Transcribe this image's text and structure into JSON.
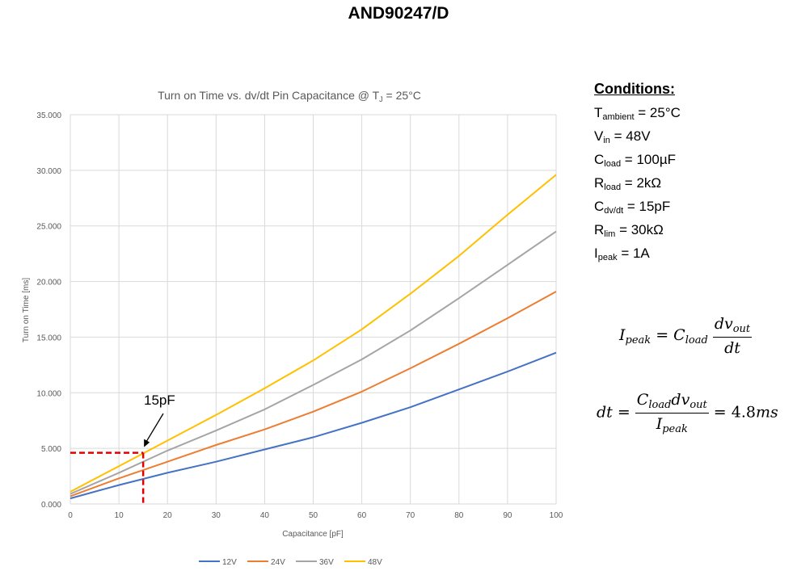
{
  "document_id": "AND90247/D",
  "annotation": {
    "label": "15pF",
    "x": 15,
    "y": 4.6
  },
  "conditions": {
    "title": "Conditions:",
    "items": [
      {
        "symbol": "T",
        "sub": "ambient",
        "rest": " = 25°C"
      },
      {
        "symbol": "V",
        "sub": "in",
        "rest": " = 48V"
      },
      {
        "symbol": "C",
        "sub": "load",
        "rest": "  = 100µF"
      },
      {
        "symbol": "R",
        "sub": "load",
        "rest": " = 2kΩ"
      },
      {
        "symbol": "C",
        "sub": "dv/dt",
        "rest": " = 15pF"
      },
      {
        "symbol": "R",
        "sub": "lim",
        "rest": " = 30kΩ"
      },
      {
        "symbol": "I",
        "sub": "peak",
        "rest": " = 1A"
      }
    ]
  },
  "equations": {
    "eq1": {
      "lhs": "I",
      "lhs_sub": "peak",
      "eq": " = ",
      "c": "C",
      "c_sub": "load",
      "num": "dv",
      "num_sub": "out",
      "den": "dt"
    },
    "eq2": {
      "lhs": "dt = ",
      "num_c": "C",
      "num_c_sub": "load",
      "num_dv": "dv",
      "num_dv_sub": "out",
      "den": "I",
      "den_sub": "peak",
      "rhs": " = 4.8",
      "rhs_unit": "ms"
    }
  },
  "chart_data": {
    "type": "line",
    "title": "Turn on Time vs. dv/dt Pin Capacitance @ T",
    "title_sub": "J",
    "title_tail": " = 25°C",
    "xlabel": "Capacitance [pF]",
    "ylabel": "Turn on Time [ms]",
    "xlim": [
      0,
      100
    ],
    "ylim": [
      0,
      35
    ],
    "x_ticks": [
      "0",
      "10",
      "20",
      "30",
      "40",
      "50",
      "60",
      "70",
      "80",
      "90",
      "100"
    ],
    "y_ticks": [
      "0.000",
      "5.000",
      "10.000",
      "15.000",
      "20.000",
      "25.000",
      "30.000",
      "35.000"
    ],
    "grid": true,
    "legend_position": "bottom",
    "x": [
      0,
      10,
      20,
      30,
      40,
      50,
      60,
      70,
      80,
      90,
      100
    ],
    "series": [
      {
        "name": "12V",
        "color": "#4472c4",
        "values": [
          0.5,
          1.7,
          2.8,
          3.8,
          4.9,
          6.0,
          7.3,
          8.7,
          10.3,
          11.9,
          13.6
        ]
      },
      {
        "name": "24V",
        "color": "#ed7d31",
        "values": [
          0.7,
          2.3,
          3.8,
          5.3,
          6.7,
          8.3,
          10.1,
          12.2,
          14.4,
          16.7,
          19.1
        ]
      },
      {
        "name": "36V",
        "color": "#a5a5a5",
        "values": [
          0.9,
          2.8,
          4.8,
          6.6,
          8.5,
          10.7,
          13.0,
          15.6,
          18.5,
          21.5,
          24.5
        ]
      },
      {
        "name": "48V",
        "color": "#ffc000",
        "values": [
          1.1,
          3.4,
          5.7,
          8.0,
          10.4,
          12.9,
          15.7,
          18.9,
          22.3,
          26.0,
          29.6
        ]
      }
    ]
  }
}
